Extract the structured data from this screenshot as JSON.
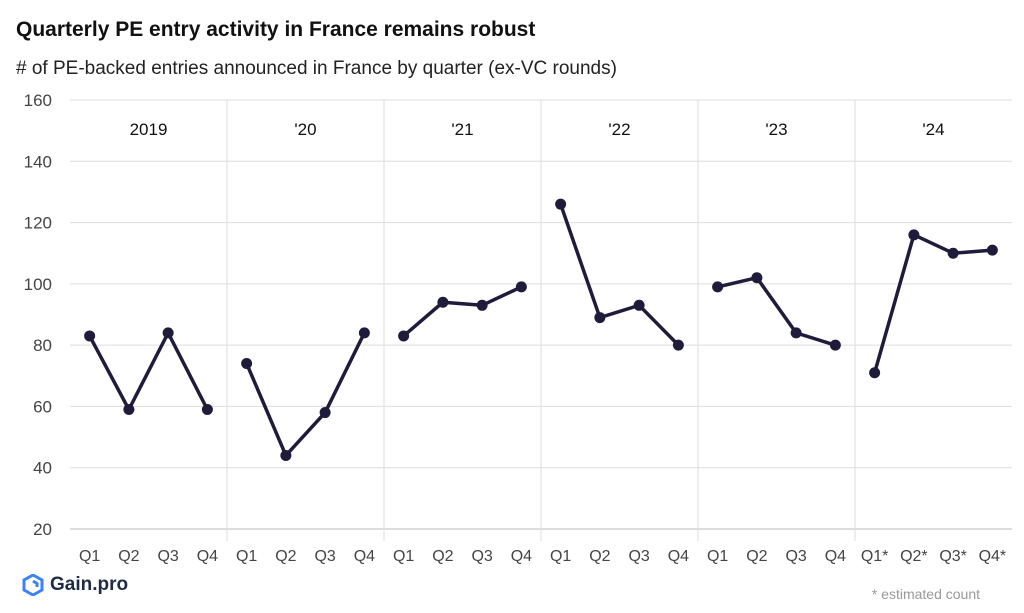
{
  "header": {
    "title": "Quarterly PE entry activity in France remains robust",
    "subtitle": "# of PE-backed entries announced in France by quarter (ex-VC rounds)"
  },
  "branding": {
    "logo_text": "Gain.pro",
    "logo_icon": "gain-pro-logo-icon"
  },
  "footnote": "* estimated count",
  "colors": {
    "line": "#1f1b3a",
    "grid": "#dddddd",
    "axis": "#bbbbbb",
    "text": "#444444",
    "logo_blue": "#3b82f6"
  },
  "chart_data": {
    "type": "line",
    "ylim": [
      20,
      160
    ],
    "yticks": [
      20,
      40,
      60,
      80,
      100,
      120,
      140,
      160
    ],
    "grid": true,
    "groups": [
      {
        "label": "2019",
        "quarters": [
          "Q1",
          "Q2",
          "Q3",
          "Q4"
        ],
        "values": [
          83,
          59,
          84,
          59
        ]
      },
      {
        "label": "'20",
        "quarters": [
          "Q1",
          "Q2",
          "Q3",
          "Q4"
        ],
        "values": [
          74,
          44,
          58,
          84
        ]
      },
      {
        "label": "'21",
        "quarters": [
          "Q1",
          "Q2",
          "Q3",
          "Q4"
        ],
        "values": [
          83,
          94,
          93,
          99
        ]
      },
      {
        "label": "'22",
        "quarters": [
          "Q1",
          "Q2",
          "Q3",
          "Q4"
        ],
        "values": [
          126,
          89,
          93,
          80
        ]
      },
      {
        "label": "'23",
        "quarters": [
          "Q1",
          "Q2",
          "Q3",
          "Q4"
        ],
        "values": [
          99,
          102,
          84,
          80
        ]
      },
      {
        "label": "'24",
        "quarters": [
          "Q1*",
          "Q2*",
          "Q3*",
          "Q4*"
        ],
        "values": [
          71,
          116,
          110,
          111
        ]
      }
    ]
  }
}
